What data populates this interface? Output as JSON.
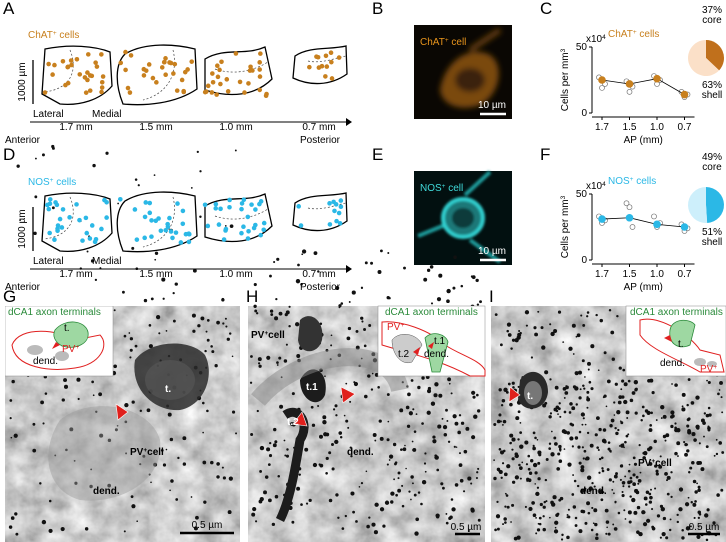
{
  "panel_labels": [
    "A",
    "B",
    "C",
    "D",
    "E",
    "F",
    "G",
    "H",
    "I"
  ],
  "panel_a": {
    "title": [
      "ChAT",
      "+",
      " cells"
    ],
    "scale": "1000 µm",
    "lateral": "Lateral",
    "medial": "Medial",
    "sections": [
      "1.7 mm",
      "1.5 mm",
      "1.0 mm",
      "0.7 mm"
    ],
    "anterior": "Anterior",
    "posterior": "Posterior",
    "color": "#c8801e"
  },
  "panel_d": {
    "title": [
      "NOS",
      "+",
      " cells"
    ],
    "scale": "1000 µm",
    "lateral": "Lateral",
    "medial": "Medial",
    "sections": [
      "1.7 mm",
      "1.5 mm",
      "1.0 mm",
      "0.7 mm"
    ],
    "anterior": "Anterior",
    "posterior": "Posterior",
    "color": "#2bb8e6"
  },
  "panel_b": {
    "title": [
      "ChAT",
      "+",
      " cell"
    ],
    "scale": "10 µm"
  },
  "panel_e": {
    "title": [
      "NOS",
      "+",
      " cell"
    ],
    "scale": "10 µm"
  },
  "chart_data": [
    {
      "type": "line",
      "title": [
        "ChAT",
        "+",
        " cells"
      ],
      "ylabel": [
        "Cells per mm",
        "3"
      ],
      "multiplier": [
        "x10",
        "4"
      ],
      "xlabel": "AP (mm)",
      "categories": [
        "1.7",
        "1.5",
        "1.0",
        "0.7"
      ],
      "values": [
        25,
        22,
        26,
        14
      ],
      "color": "#c8801e",
      "individual_values": [
        [
          27,
          19,
          22
        ],
        [
          24,
          16,
          20
        ],
        [
          28,
          22,
          25
        ],
        [
          16,
          12,
          14
        ]
      ],
      "ylim": [
        0,
        50
      ],
      "yticks": [
        0,
        50
      ],
      "pie": {
        "values": [
          37,
          63
        ],
        "value_labels": [
          "37%",
          "63%"
        ],
        "labels": [
          "core",
          "shell"
        ],
        "colors": [
          "#c0701c",
          "#fbe0c8"
        ]
      }
    },
    {
      "type": "line",
      "title": [
        "NOS",
        "+",
        " cells"
      ],
      "ylabel": [
        "Cells per mm",
        "3"
      ],
      "multiplier": [
        "x10",
        "4"
      ],
      "xlabel": "AP (mm)",
      "categories": [
        "1.7",
        "1.5",
        "1.0",
        "0.7"
      ],
      "values": [
        31,
        32,
        27,
        25
      ],
      "color": "#2bb8e6",
      "individual_values": [
        [
          33,
          28,
          30
        ],
        [
          43,
          40,
          25
        ],
        [
          33,
          25,
          28
        ],
        [
          27,
          22,
          24
        ]
      ],
      "ylim": [
        0,
        50
      ],
      "yticks": [
        0,
        50
      ],
      "pie": {
        "values": [
          49,
          51
        ],
        "value_labels": [
          "49%",
          "51%"
        ],
        "labels": [
          "core",
          "shell"
        ],
        "colors": [
          "#2bb8e6",
          "#cdeffb"
        ]
      }
    }
  ],
  "panel_g": {
    "inset": {
      "title": "dCA1 axon terminals",
      "t": "t.",
      "pv": [
        "PV",
        "+"
      ],
      "dend": "dend."
    },
    "labels": {
      "t": "t.",
      "cell": [
        "PV",
        "+",
        "cell"
      ],
      "dend": "dend."
    },
    "scale": "0.5 µm"
  },
  "panel_h": {
    "inset": {
      "title": "dCA1 axon terminals",
      "pv": [
        "PV",
        "+"
      ],
      "t1": "t.1",
      "t2": "t.2",
      "dend": "dend."
    },
    "labels": {
      "cell": [
        "PV",
        "+",
        "cell"
      ],
      "t1": "t.1",
      "t2": "t.2",
      "dend": "dend."
    },
    "scale": "0.5 µm"
  },
  "panel_i": {
    "inset": {
      "title": "dCA1 axon terminals",
      "t": "t.",
      "dend": "dend.",
      "pv": [
        "PV",
        "+"
      ]
    },
    "labels": {
      "t": "t.",
      "cell": [
        "PV",
        "+",
        "cell"
      ],
      "dend": "dend."
    },
    "scale": "0.5 µm"
  }
}
